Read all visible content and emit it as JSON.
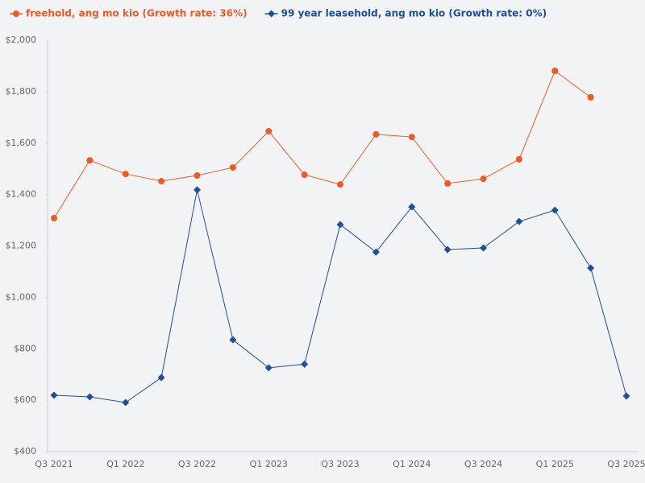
{
  "chart_data": {
    "type": "line",
    "categories": [
      "Q3 2021",
      null,
      "Q1 2022",
      null,
      "Q3 2022",
      null,
      "Q1 2023",
      null,
      "Q3 2023",
      null,
      "Q1 2024",
      null,
      "Q3 2024",
      null,
      "Q1 2025",
      null,
      "Q3 2025"
    ],
    "series": [
      {
        "name": "freehold, ang mo kio (Growth rate: 36%)",
        "color": "#f05a28",
        "marker": "circle",
        "values": [
          1308,
          1533,
          1480,
          1452,
          1474,
          1505,
          1646,
          1477,
          1439,
          1634,
          1624,
          1443,
          1461,
          1537,
          1881,
          1778,
          null
        ]
      },
      {
        "name": "99 year leasehold, ang mo kio (Growth rate: 0%)",
        "color": "#1f4e9c",
        "marker": "diamond",
        "values": [
          619,
          613,
          591,
          688,
          1418,
          835,
          726,
          740,
          1283,
          1176,
          1352,
          1186,
          1192,
          1295,
          1339,
          1114,
          616
        ]
      }
    ],
    "ylim": [
      400,
      2000
    ],
    "yticks": [
      {
        "value": 400,
        "label": "$400"
      },
      {
        "value": 600,
        "label": "$600"
      },
      {
        "value": 800,
        "label": "$800"
      },
      {
        "value": 1000,
        "label": "$1,000"
      },
      {
        "value": 1200,
        "label": "$1,200"
      },
      {
        "value": 1400,
        "label": "$1,400"
      },
      {
        "value": 1600,
        "label": "$1,600"
      },
      {
        "value": 1800,
        "label": "$1,800"
      },
      {
        "value": 2000,
        "label": "$2,000"
      }
    ],
    "grid": false,
    "legend": "top-left"
  }
}
